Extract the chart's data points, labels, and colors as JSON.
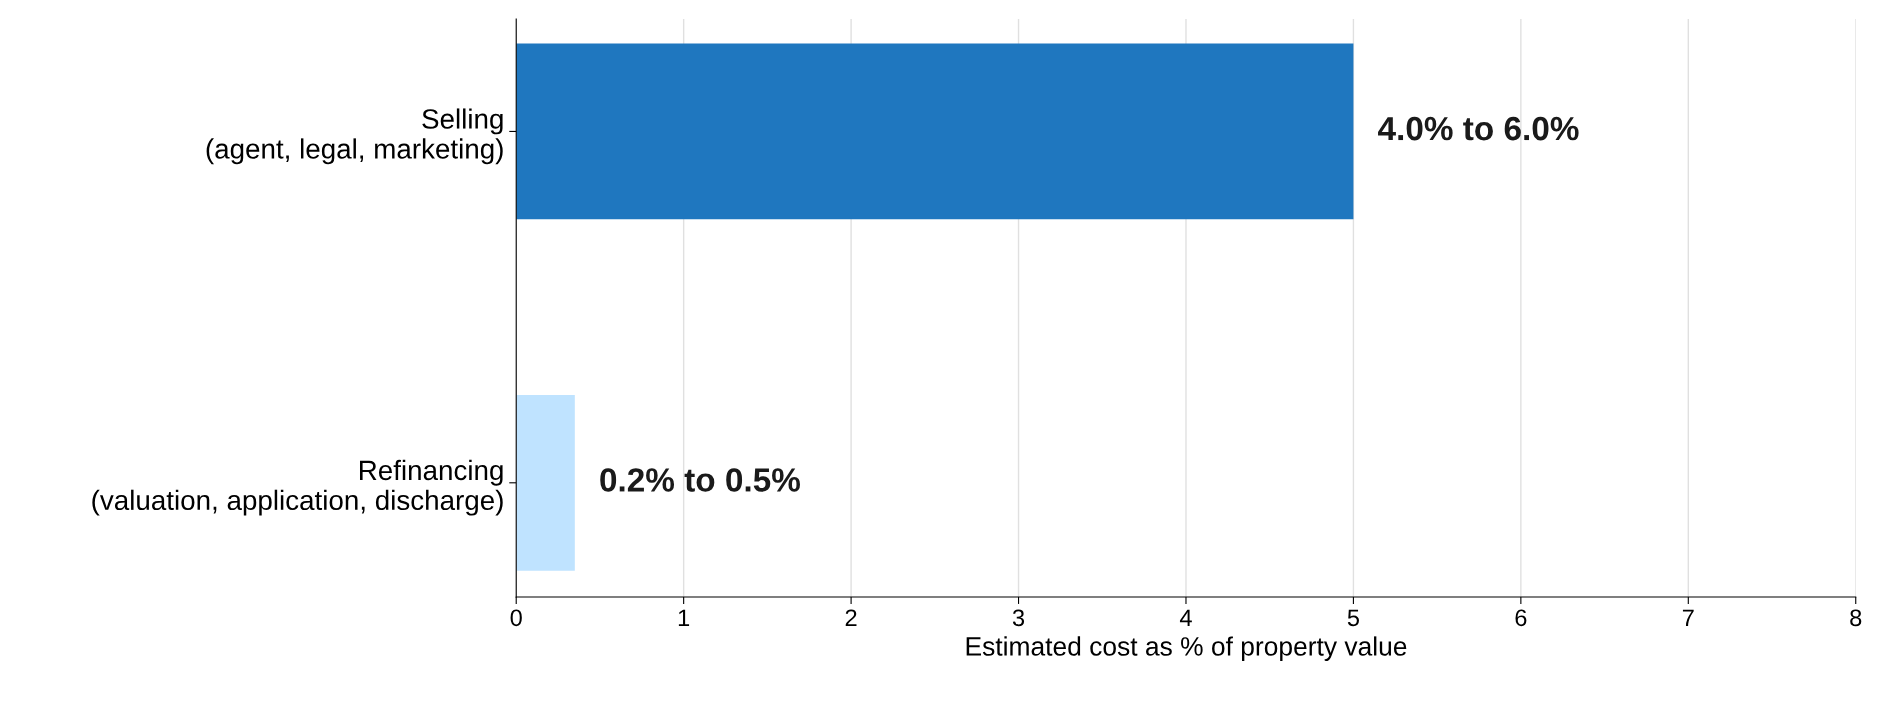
{
  "chart_data": {
    "type": "bar",
    "orientation": "horizontal",
    "categories": [
      "Selling\n(agent, legal, marketing)",
      "Refinancing\n(valuation, application, discharge)"
    ],
    "values": [
      5.0,
      0.35
    ],
    "colors": [
      "#1f77bf",
      "#bfe3ff"
    ],
    "annotations": [
      {
        "text": "4.0% to 6.0%",
        "x": 5.0,
        "y": "Selling\n(agent, legal, marketing)"
      },
      {
        "text": "0.2% to 0.5%",
        "x": 0.35,
        "y": "Refinancing\n(valuation, application, discharge)"
      }
    ],
    "xlabel": "Estimated cost as % of property value",
    "xlim": [
      0,
      8
    ],
    "xticks": [
      0,
      1,
      2,
      3,
      4,
      5,
      6,
      7,
      8
    ],
    "grid": "x",
    "legend": false
  }
}
